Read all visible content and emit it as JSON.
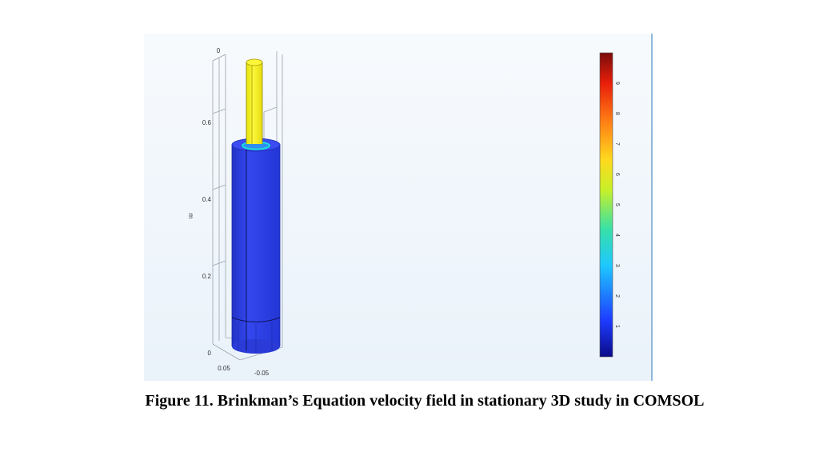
{
  "figure": {
    "caption": "Figure 11. Brinkman’s Equation velocity field in stationary 3D study in COMSOL"
  },
  "plot": {
    "axis_unit": "m",
    "vertical_ticks": [
      "0",
      "0.2",
      "0.4",
      "0.6"
    ],
    "top_tick": "0",
    "horizontal_ticks": [
      "0.05",
      "-0.05"
    ],
    "colors": {
      "outer_body": "#2d3fe0",
      "inner_rod": "#f0ec1a",
      "ring_accent": "#19e0d8",
      "background": "#eef4fa"
    }
  },
  "colorbar": {
    "labels": [
      "1",
      "2",
      "3",
      "4",
      "5",
      "6",
      "7",
      "8",
      "9"
    ],
    "value_range": [
      0,
      10
    ],
    "gradient_colors": [
      "#0a0a88",
      "#1e3cff",
      "#1ec8ff",
      "#38e0a8",
      "#c8f028",
      "#ffd81e",
      "#ff7a14",
      "#e81e0a",
      "#7a0c0c"
    ]
  }
}
